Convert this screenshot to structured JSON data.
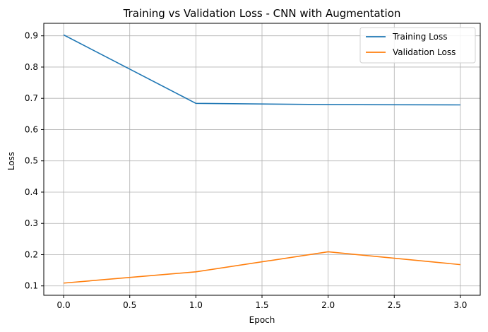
{
  "chart_data": {
    "type": "line",
    "title": "Training vs Validation Loss - CNN with Augmentation",
    "xlabel": "Epoch",
    "ylabel": "Loss",
    "x": [
      0,
      1,
      2,
      3
    ],
    "xlim": [
      -0.15,
      3.15
    ],
    "ylim": [
      0.07,
      0.94
    ],
    "xticks": [
      "0.0",
      "0.5",
      "1.0",
      "1.5",
      "2.0",
      "2.5",
      "3.0"
    ],
    "yticks": [
      "0.1",
      "0.2",
      "0.3",
      "0.4",
      "0.5",
      "0.6",
      "0.7",
      "0.8",
      "0.9"
    ],
    "grid": true,
    "legend_position": "top-right",
    "series": [
      {
        "name": "Training Loss",
        "color": "#1f77b4",
        "values": [
          0.903,
          0.684,
          0.68,
          0.679
        ]
      },
      {
        "name": "Validation Loss",
        "color": "#ff7f0e",
        "values": [
          0.109,
          0.145,
          0.209,
          0.168
        ]
      }
    ]
  }
}
